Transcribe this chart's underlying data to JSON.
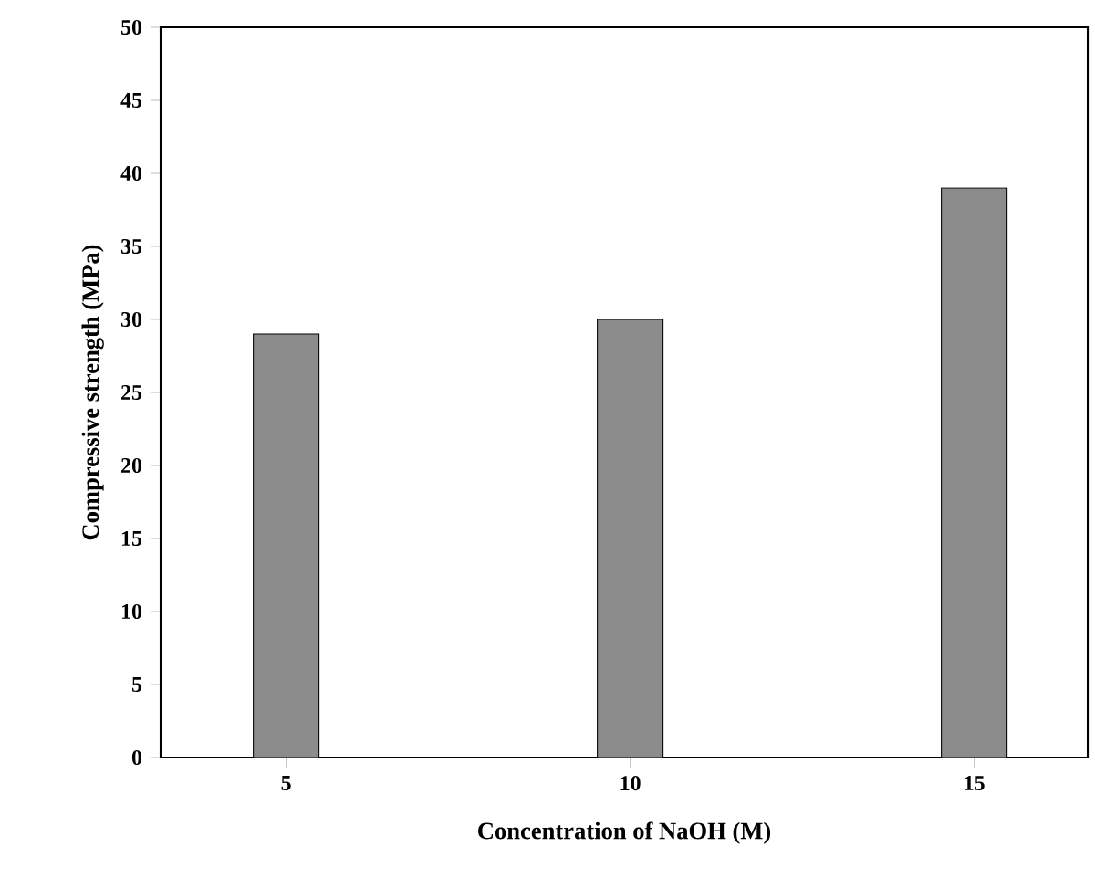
{
  "chart_data": {
    "type": "bar",
    "xlabel": "Concentration of NaOH (M)",
    "ylabel": "Compressive strength (MPa)",
    "categories": [
      "5",
      "10",
      "15"
    ],
    "values": [
      29,
      30,
      39
    ],
    "color": "#8c8c8c",
    "ylim": [
      0,
      50
    ],
    "yticks": [
      0,
      5,
      10,
      15,
      20,
      25,
      30,
      35,
      40,
      45,
      50
    ],
    "grid": false
  }
}
